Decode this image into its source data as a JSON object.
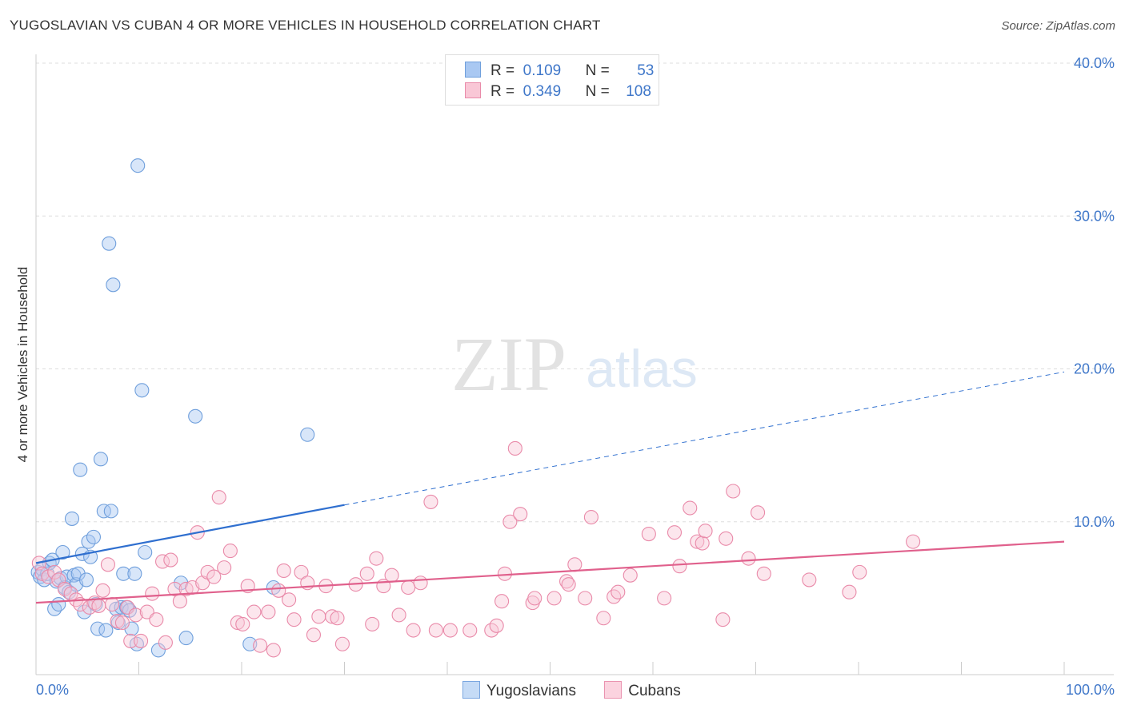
{
  "header": {
    "title": "YUGOSLAVIAN VS CUBAN 4 OR MORE VEHICLES IN HOUSEHOLD CORRELATION CHART",
    "source": "Source: ZipAtlas.com"
  },
  "watermark": {
    "zip": "ZIP",
    "atlas": "atlas"
  },
  "legend": {
    "rows": [
      {
        "r_label": "R =",
        "r_value": "0.109",
        "n_label": "N =",
        "n_value": "53",
        "color": "#a9c8f2",
        "border": "#6f9fdc"
      },
      {
        "r_label": "R =",
        "r_value": "0.349",
        "n_label": "N =",
        "n_value": "108",
        "color": "#f9c7d6",
        "border": "#e98aa9"
      }
    ]
  },
  "bottom_legend": {
    "items": [
      {
        "label": "Yugoslavians",
        "color": "#c5dbf6",
        "border": "#7aa6e0"
      },
      {
        "label": "Cubans",
        "color": "#fbd3df",
        "border": "#ea93b0"
      }
    ]
  },
  "chart_data": {
    "type": "scatter",
    "title": "YUGOSLAVIAN VS CUBAN 4 OR MORE VEHICLES IN HOUSEHOLD CORRELATION CHART",
    "xlabel": "",
    "ylabel": "4 or more Vehicles in Household",
    "xlim": [
      0,
      100
    ],
    "ylim": [
      0,
      40
    ],
    "x_tick_labels": [
      "0.0%",
      "100.0%"
    ],
    "y_tick_labels": [
      "10.0%",
      "20.0%",
      "30.0%",
      "40.0%"
    ],
    "y_ticks": [
      10,
      20,
      30,
      40
    ],
    "grid": true,
    "legend_position": "top-center",
    "series": [
      {
        "name": "Yugoslavians",
        "color": "#6f9fdc",
        "fill": "rgba(169,200,242,0.45)",
        "trend": {
          "x0": 0,
          "y0": 7.3,
          "x1": 30,
          "y1": 11.1,
          "dashed_to_x": 100,
          "dashed_to_y": 19.8,
          "color": "#2f6fcf"
        },
        "points": [
          [
            0.2,
            6.7
          ],
          [
            0.4,
            6.4
          ],
          [
            0.6,
            6.9
          ],
          [
            0.8,
            6.2
          ],
          [
            1.1,
            6.6
          ],
          [
            1.3,
            7.3
          ],
          [
            1.6,
            7.5
          ],
          [
            1.8,
            4.3
          ],
          [
            2.0,
            6.1
          ],
          [
            2.2,
            4.6
          ],
          [
            2.4,
            6.3
          ],
          [
            2.6,
            8.0
          ],
          [
            2.8,
            5.7
          ],
          [
            3.0,
            6.4
          ],
          [
            3.2,
            5.4
          ],
          [
            3.5,
            10.2
          ],
          [
            3.7,
            6.5
          ],
          [
            3.9,
            5.9
          ],
          [
            4.1,
            6.6
          ],
          [
            4.3,
            13.4
          ],
          [
            4.5,
            7.9
          ],
          [
            4.7,
            4.1
          ],
          [
            4.9,
            6.2
          ],
          [
            5.1,
            8.7
          ],
          [
            5.3,
            7.7
          ],
          [
            5.6,
            9.0
          ],
          [
            5.8,
            4.6
          ],
          [
            6.0,
            3.0
          ],
          [
            6.3,
            14.1
          ],
          [
            6.6,
            10.7
          ],
          [
            6.8,
            2.9
          ],
          [
            7.1,
            28.2
          ],
          [
            7.3,
            10.7
          ],
          [
            7.5,
            25.5
          ],
          [
            7.8,
            4.3
          ],
          [
            8.0,
            3.4
          ],
          [
            8.3,
            4.4
          ],
          [
            8.5,
            6.6
          ],
          [
            8.8,
            4.4
          ],
          [
            9.1,
            4.2
          ],
          [
            9.3,
            3.0
          ],
          [
            9.6,
            6.6
          ],
          [
            9.8,
            2.0
          ],
          [
            9.9,
            33.3
          ],
          [
            10.3,
            18.6
          ],
          [
            10.6,
            8.0
          ],
          [
            11.9,
            1.6
          ],
          [
            14.1,
            6.0
          ],
          [
            14.6,
            2.4
          ],
          [
            15.5,
            16.9
          ],
          [
            20.8,
            2.0
          ],
          [
            23.1,
            5.7
          ],
          [
            26.4,
            15.7
          ]
        ]
      },
      {
        "name": "Cubans",
        "color": "#e98aa9",
        "fill": "rgba(249,199,214,0.45)",
        "trend": {
          "x0": 0,
          "y0": 4.7,
          "x1": 100,
          "y1": 8.7,
          "color": "#e0608c"
        },
        "points": [
          [
            0.3,
            7.3
          ],
          [
            0.6,
            6.6
          ],
          [
            1.2,
            6.4
          ],
          [
            1.8,
            6.7
          ],
          [
            2.2,
            6.2
          ],
          [
            2.8,
            5.6
          ],
          [
            3.4,
            5.3
          ],
          [
            3.9,
            4.9
          ],
          [
            4.3,
            4.6
          ],
          [
            5.2,
            4.4
          ],
          [
            5.7,
            4.7
          ],
          [
            6.1,
            4.5
          ],
          [
            6.5,
            5.5
          ],
          [
            7.0,
            7.2
          ],
          [
            7.4,
            4.6
          ],
          [
            7.9,
            3.5
          ],
          [
            8.4,
            3.4
          ],
          [
            8.9,
            4.4
          ],
          [
            9.2,
            2.2
          ],
          [
            9.7,
            3.9
          ],
          [
            10.2,
            2.2
          ],
          [
            10.8,
            4.1
          ],
          [
            11.3,
            5.3
          ],
          [
            11.7,
            3.6
          ],
          [
            12.3,
            7.4
          ],
          [
            12.6,
            2.1
          ],
          [
            13.1,
            7.5
          ],
          [
            13.5,
            5.6
          ],
          [
            14.0,
            4.8
          ],
          [
            14.6,
            5.6
          ],
          [
            15.2,
            5.7
          ],
          [
            15.7,
            9.3
          ],
          [
            16.2,
            6.0
          ],
          [
            16.7,
            6.7
          ],
          [
            17.3,
            6.4
          ],
          [
            17.8,
            11.6
          ],
          [
            18.3,
            7.0
          ],
          [
            18.9,
            8.1
          ],
          [
            19.6,
            3.4
          ],
          [
            20.1,
            3.3
          ],
          [
            20.6,
            5.8
          ],
          [
            21.2,
            4.1
          ],
          [
            21.8,
            1.9
          ],
          [
            22.6,
            4.1
          ],
          [
            23.1,
            1.6
          ],
          [
            23.6,
            5.5
          ],
          [
            24.1,
            6.8
          ],
          [
            24.6,
            4.9
          ],
          [
            25.1,
            3.6
          ],
          [
            25.8,
            6.7
          ],
          [
            26.4,
            6.0
          ],
          [
            27.0,
            2.6
          ],
          [
            27.5,
            3.8
          ],
          [
            28.2,
            5.8
          ],
          [
            28.8,
            3.8
          ],
          [
            29.3,
            3.7
          ],
          [
            29.8,
            2.0
          ],
          [
            31.1,
            5.9
          ],
          [
            32.2,
            6.6
          ],
          [
            32.7,
            3.3
          ],
          [
            33.1,
            7.6
          ],
          [
            33.8,
            5.8
          ],
          [
            34.6,
            6.5
          ],
          [
            35.3,
            3.9
          ],
          [
            36.2,
            5.7
          ],
          [
            36.7,
            2.9
          ],
          [
            37.4,
            6.0
          ],
          [
            38.4,
            11.3
          ],
          [
            38.9,
            2.9
          ],
          [
            40.3,
            2.9
          ],
          [
            42.2,
            2.9
          ],
          [
            44.3,
            2.9
          ],
          [
            44.8,
            3.2
          ],
          [
            45.3,
            4.8
          ],
          [
            45.6,
            6.6
          ],
          [
            46.1,
            10.0
          ],
          [
            46.6,
            14.8
          ],
          [
            47.1,
            10.5
          ],
          [
            48.3,
            4.7
          ],
          [
            48.5,
            5.0
          ],
          [
            50.4,
            5.0
          ],
          [
            51.6,
            6.1
          ],
          [
            51.8,
            5.9
          ],
          [
            52.4,
            7.2
          ],
          [
            53.4,
            5.0
          ],
          [
            54.0,
            10.3
          ],
          [
            55.2,
            3.7
          ],
          [
            56.2,
            5.1
          ],
          [
            56.6,
            5.4
          ],
          [
            57.8,
            6.5
          ],
          [
            59.6,
            9.2
          ],
          [
            61.1,
            5.0
          ],
          [
            62.1,
            9.3
          ],
          [
            62.6,
            7.1
          ],
          [
            63.6,
            10.9
          ],
          [
            64.3,
            8.7
          ],
          [
            64.8,
            8.6
          ],
          [
            65.1,
            9.4
          ],
          [
            66.8,
            3.6
          ],
          [
            67.1,
            8.9
          ],
          [
            67.8,
            12.0
          ],
          [
            69.3,
            7.6
          ],
          [
            70.2,
            10.6
          ],
          [
            70.8,
            6.6
          ],
          [
            75.2,
            6.2
          ],
          [
            79.1,
            5.4
          ],
          [
            80.1,
            6.7
          ],
          [
            85.3,
            8.7
          ]
        ]
      }
    ]
  }
}
